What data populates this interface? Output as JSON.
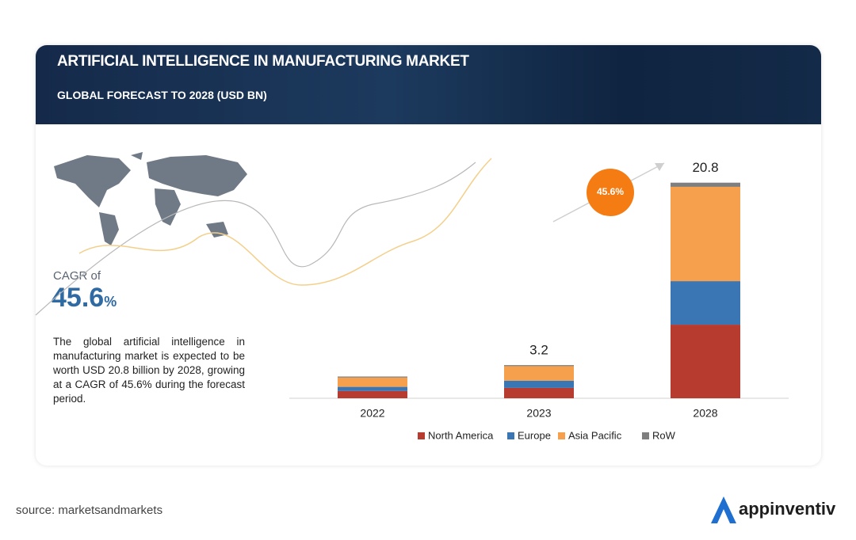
{
  "header": {
    "title": "ARTIFICIAL INTELLIGENCE IN MANUFACTURING  MARKET",
    "subtitle": "GLOBAL FORECAST TO 2028 (USD BN)"
  },
  "sidebar": {
    "cagr_label": "CAGR of",
    "cagr_value": "45.6",
    "cagr_unit": "%",
    "text": "The global artificial intelligence in manufacturing market is expected to be worth USD 20.8 billion by 2028, growing at a CAGR of 45.6% during the forecast period."
  },
  "chart_data": {
    "type": "bar",
    "stacked": true,
    "categories": [
      "2022",
      "2023",
      "2028"
    ],
    "series": [
      {
        "name": "North America",
        "color": "#b83b30",
        "values": [
          0.7,
          1.0,
          7.1
        ]
      },
      {
        "name": "Europe",
        "color": "#3a76b4",
        "values": [
          0.4,
          0.7,
          4.2
        ]
      },
      {
        "name": "Asia Pacific",
        "color": "#f6a04d",
        "values": [
          0.9,
          1.4,
          9.1
        ]
      },
      {
        "name": "RoW",
        "color": "#7f7f7f",
        "values": [
          0.1,
          0.1,
          0.4
        ]
      }
    ],
    "totals": [
      null,
      3.2,
      20.8
    ],
    "annotation": "45.6%",
    "ylim": [
      0,
      22
    ],
    "legend": "bottom"
  },
  "footer": {
    "source": "source: marketsandmarkets",
    "brand": "appinventiv"
  }
}
